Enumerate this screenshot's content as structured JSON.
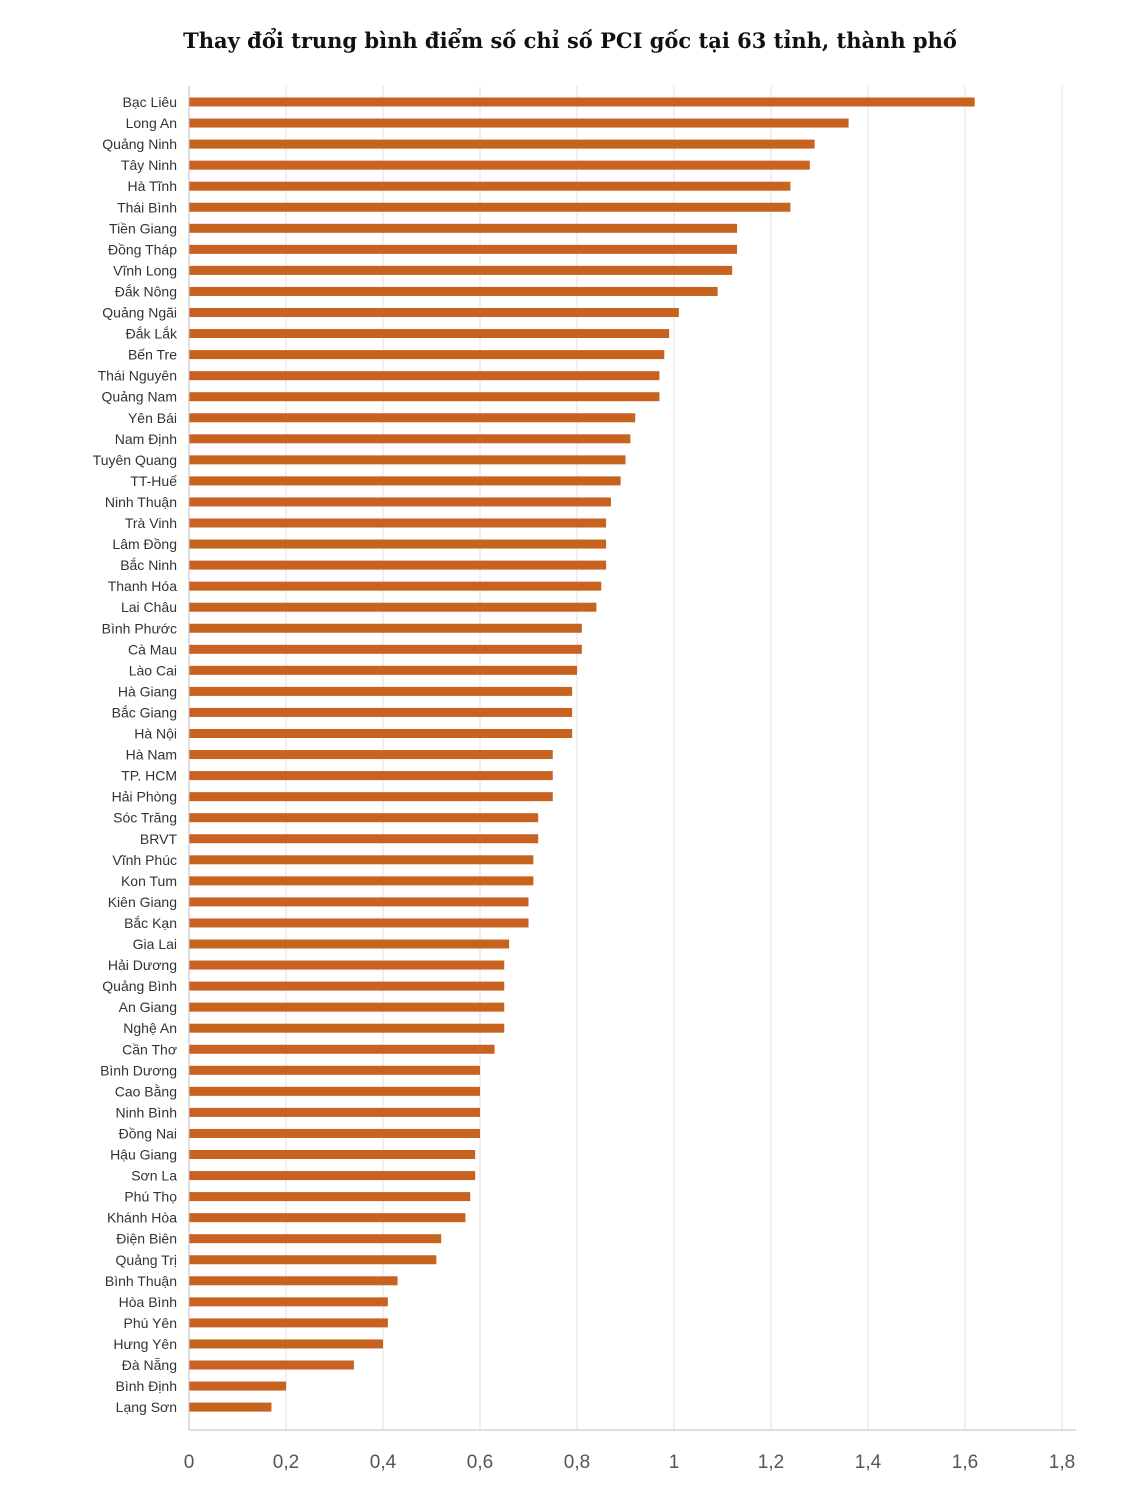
{
  "chart_data": {
    "type": "bar",
    "orientation": "horizontal",
    "title": "Thay đổi trung bình điểm số chỉ số PCI gốc tại 63 tỉnh, thành phố",
    "xlabel": "",
    "ylabel": "",
    "xlim": [
      0,
      1.8
    ],
    "grid": true,
    "bar_color": "#c8621f",
    "ticks": [
      {
        "value": 0,
        "label": "0"
      },
      {
        "value": 0.2,
        "label": "0,2"
      },
      {
        "value": 0.4,
        "label": "0,4"
      },
      {
        "value": 0.6,
        "label": "0,6"
      },
      {
        "value": 0.8,
        "label": "0,8"
      },
      {
        "value": 1,
        "label": "1"
      },
      {
        "value": 1.2,
        "label": "1,2"
      },
      {
        "value": 1.4,
        "label": "1,4"
      },
      {
        "value": 1.6,
        "label": "1,6"
      },
      {
        "value": 1.8,
        "label": "1,8"
      }
    ],
    "categories": [
      "Bạc Liêu",
      "Long An",
      "Quảng Ninh",
      "Tây Ninh",
      "Hà Tĩnh",
      "Thái Bình",
      "Tiền Giang",
      "Đồng Tháp",
      "Vĩnh Long",
      "Đắk Nông",
      "Quảng Ngãi",
      "Đắk Lắk",
      "Bến Tre",
      "Thái Nguyên",
      "Quảng Nam",
      "Yên Bái",
      "Nam Định",
      "Tuyên Quang",
      "TT-Huế",
      "Ninh Thuận",
      "Trà Vinh",
      "Lâm Đồng",
      "Bắc Ninh",
      "Thanh Hóa",
      "Lai Châu",
      "Bình Phước",
      "Cà Mau",
      "Lào Cai",
      "Hà Giang",
      "Bắc Giang",
      "Hà Nội",
      "Hà Nam",
      "TP. HCM",
      "Hải Phòng",
      "Sóc Trăng",
      "BRVT",
      "Vĩnh Phúc",
      "Kon Tum",
      "Kiên Giang",
      "Bắc Kạn",
      "Gia Lai",
      "Hải Dương",
      "Quảng Bình",
      "An Giang",
      "Nghệ An",
      "Cần Thơ",
      "Bình Dương",
      "Cao Bằng",
      "Ninh Bình",
      "Đồng Nai",
      "Hậu Giang",
      "Sơn La",
      "Phú Thọ",
      "Khánh Hòa",
      "Điện Biên",
      "Quảng Trị",
      "Bình Thuận",
      "Hòa Bình",
      "Phú Yên",
      "Hưng Yên",
      "Đà Nẵng",
      "Bình Định",
      "Lạng Sơn"
    ],
    "values": [
      1.62,
      1.36,
      1.29,
      1.28,
      1.24,
      1.24,
      1.13,
      1.13,
      1.12,
      1.09,
      1.01,
      0.99,
      0.98,
      0.97,
      0.97,
      0.92,
      0.91,
      0.9,
      0.89,
      0.87,
      0.86,
      0.86,
      0.86,
      0.85,
      0.84,
      0.81,
      0.81,
      0.8,
      0.79,
      0.79,
      0.79,
      0.75,
      0.75,
      0.75,
      0.72,
      0.72,
      0.71,
      0.71,
      0.7,
      0.7,
      0.66,
      0.65,
      0.65,
      0.65,
      0.65,
      0.63,
      0.6,
      0.6,
      0.6,
      0.6,
      0.59,
      0.59,
      0.58,
      0.57,
      0.52,
      0.51,
      0.43,
      0.41,
      0.41,
      0.4,
      0.34,
      0.2,
      0.17
    ]
  }
}
